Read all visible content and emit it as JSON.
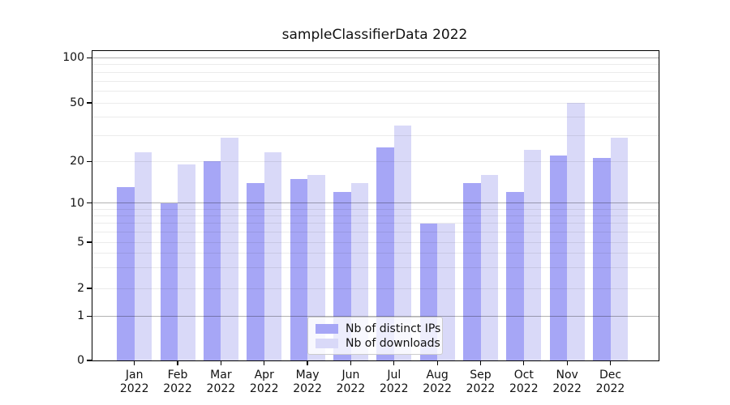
{
  "title": "sampleClassifierData 2022",
  "chart_data": {
    "type": "bar",
    "title": "sampleClassifierData 2022",
    "categories": [
      "Jan 2022",
      "Feb 2022",
      "Mar 2022",
      "Apr 2022",
      "May 2022",
      "Jun 2022",
      "Jul 2022",
      "Aug 2022",
      "Sep 2022",
      "Oct 2022",
      "Nov 2022",
      "Dec 2022"
    ],
    "series": [
      {
        "name": "Nb of distinct IPs",
        "color": "#a6a6f6",
        "values": [
          13,
          10,
          20,
          14,
          15,
          12,
          25,
          7,
          14,
          12,
          22,
          21
        ]
      },
      {
        "name": "Nb of downloads",
        "color": "#d9d9f8",
        "values": [
          23,
          19,
          29,
          23,
          16,
          14,
          35,
          7,
          16,
          24,
          50,
          29
        ]
      }
    ],
    "xlabel": "",
    "ylabel": "",
    "yscale": "symlog",
    "ylim": [
      0,
      110
    ],
    "y_ticks": [
      100,
      50,
      20,
      10,
      5,
      2,
      1,
      0
    ],
    "y_major_gridlines": [
      100,
      10,
      1
    ],
    "y_minor_gridlines": [
      90,
      80,
      70,
      60,
      50,
      40,
      30,
      20,
      9,
      8,
      7,
      6,
      5,
      4,
      3,
      2
    ],
    "grid": true,
    "legend_position": "lower center",
    "background_color": "#ffffff",
    "text_color": "#111111"
  }
}
